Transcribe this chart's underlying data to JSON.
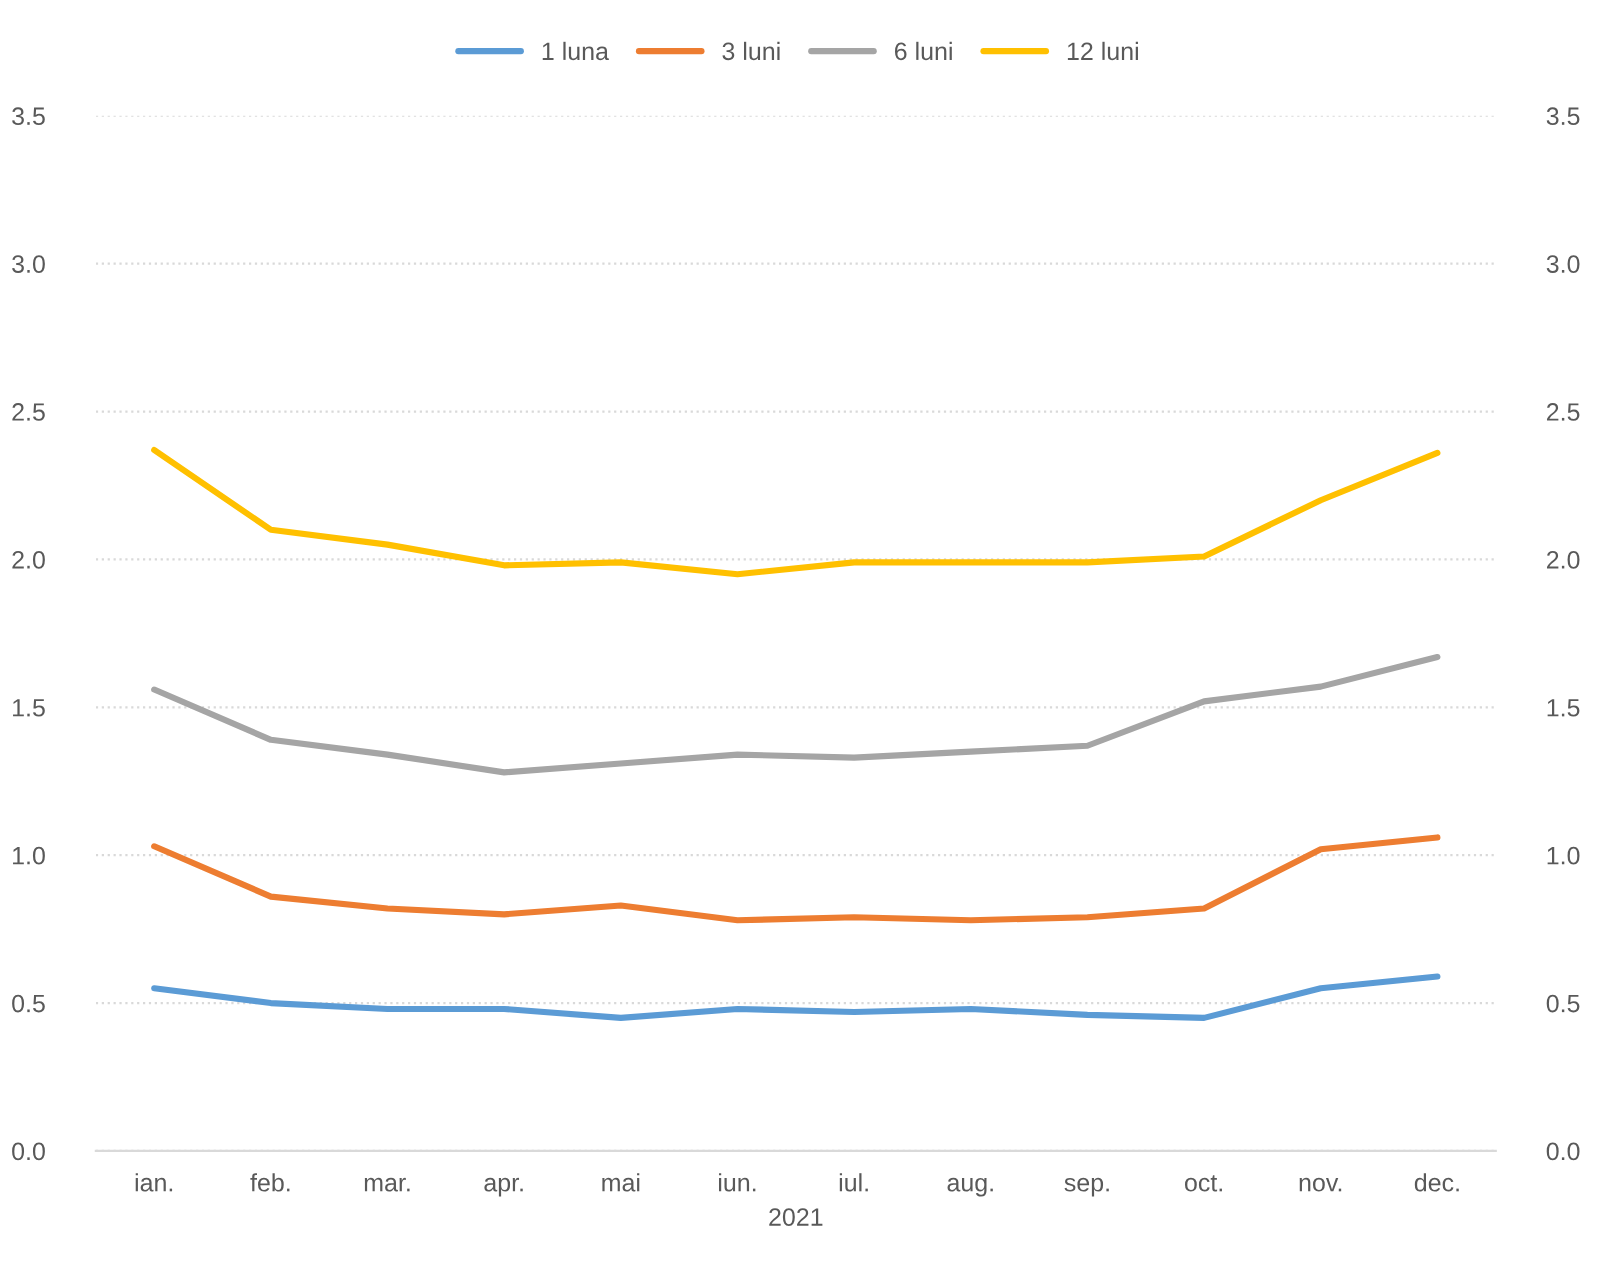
{
  "chart_data": {
    "type": "line",
    "categories": [
      "ian.",
      "feb.",
      "mar.",
      "apr.",
      "mai",
      "iun.",
      "iul.",
      "aug.",
      "sep.",
      "oct.",
      "nov.",
      "dec."
    ],
    "xlabel": "2021",
    "series": [
      {
        "name": "1 luna",
        "color": "#5b9bd5",
        "values": [
          0.55,
          0.5,
          0.48,
          0.48,
          0.45,
          0.48,
          0.47,
          0.48,
          0.46,
          0.45,
          0.55,
          0.59
        ]
      },
      {
        "name": "3 luni",
        "color": "#ed7d31",
        "values": [
          1.03,
          0.86,
          0.82,
          0.8,
          0.83,
          0.78,
          0.79,
          0.78,
          0.79,
          0.82,
          1.02,
          1.06
        ]
      },
      {
        "name": "6 luni",
        "color": "#a5a5a5",
        "values": [
          1.56,
          1.39,
          1.34,
          1.28,
          1.31,
          1.34,
          1.33,
          1.35,
          1.37,
          1.52,
          1.57,
          1.67
        ]
      },
      {
        "name": "12 luni",
        "color": "#ffc000",
        "values": [
          2.37,
          2.1,
          2.05,
          1.98,
          1.99,
          1.95,
          1.99,
          1.99,
          1.99,
          2.01,
          2.2,
          2.36
        ]
      }
    ],
    "ylim": [
      0,
      3.5
    ],
    "yticks": [
      {
        "value": 0,
        "label": "0.0"
      },
      {
        "value": 0.5,
        "label": "0.5"
      },
      {
        "value": 1,
        "label": "1.0"
      },
      {
        "value": 1.5,
        "label": "1.5"
      },
      {
        "value": 2,
        "label": "2.0"
      },
      {
        "value": 2.5,
        "label": "2.5"
      },
      {
        "value": 3,
        "label": "3.0"
      },
      {
        "value": 3.5,
        "label": "3.5"
      }
    ],
    "y2lim": [
      0,
      3.5
    ],
    "y2ticks": [
      {
        "value": 0,
        "label": "0.0"
      },
      {
        "value": 0.5,
        "label": "0.5"
      },
      {
        "value": 1,
        "label": "1.0"
      },
      {
        "value": 1.5,
        "label": "1.5"
      },
      {
        "value": 2,
        "label": "2.0"
      },
      {
        "value": 2.5,
        "label": "2.5"
      },
      {
        "value": 3,
        "label": "3.0"
      },
      {
        "value": 3.5,
        "label": "3.5"
      }
    ],
    "grid": "y",
    "legend": "top",
    "marker": "none",
    "line_style": "solid"
  }
}
